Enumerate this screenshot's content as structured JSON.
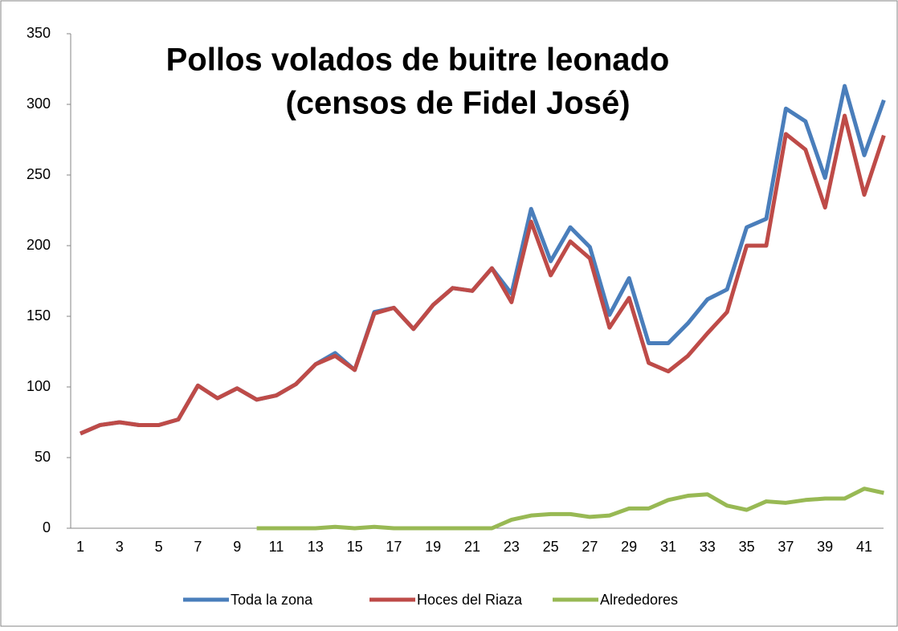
{
  "chart_data": {
    "type": "line",
    "title": [
      "Pollos volados de buitre leonado",
      "(censos de Fidel José)"
    ],
    "categories": [
      "1",
      null,
      "3",
      null,
      "5",
      null,
      "7",
      null,
      "9",
      null,
      "11",
      null,
      "13",
      null,
      "15",
      null,
      "17",
      null,
      "19",
      null,
      "21",
      null,
      "23",
      null,
      "25",
      null,
      "27",
      null,
      "29",
      null,
      "31",
      null,
      "33",
      null,
      "35",
      null,
      "37",
      null,
      "39",
      null,
      "41",
      null
    ],
    "series": [
      {
        "name": "Toda la zona",
        "color": "#4a7ebb",
        "values": [
          67,
          73,
          75,
          73,
          73,
          77,
          101,
          92,
          99,
          91,
          94,
          102,
          116,
          124,
          112,
          153,
          156,
          141,
          158,
          170,
          168,
          184,
          166,
          226,
          189,
          213,
          199,
          151,
          177,
          131,
          131,
          145,
          162,
          169,
          213,
          219,
          297,
          288,
          248,
          313,
          264,
          303
        ]
      },
      {
        "name": "Hoces del Riaza",
        "color": "#be4b48",
        "values": [
          67,
          73,
          75,
          73,
          73,
          77,
          101,
          92,
          99,
          91,
          94,
          102,
          116,
          122,
          112,
          152,
          156,
          141,
          158,
          170,
          168,
          184,
          160,
          217,
          179,
          203,
          191,
          142,
          163,
          117,
          111,
          122,
          138,
          153,
          200,
          200,
          279,
          268,
          227,
          292,
          236,
          278
        ]
      },
      {
        "name": "Alrededores",
        "color": "#98b954",
        "values": [
          null,
          null,
          null,
          null,
          null,
          null,
          null,
          null,
          null,
          0,
          0,
          0,
          0,
          1,
          0,
          1,
          0,
          0,
          0,
          0,
          0,
          0,
          6,
          9,
          10,
          10,
          8,
          9,
          14,
          14,
          20,
          23,
          24,
          16,
          13,
          19,
          18,
          20,
          21,
          21,
          28,
          25
        ]
      }
    ],
    "ylim": [
      0,
      350
    ],
    "yticks": [
      0,
      50,
      100,
      150,
      200,
      250,
      300,
      350
    ],
    "grid": false,
    "legend": "bottom"
  }
}
